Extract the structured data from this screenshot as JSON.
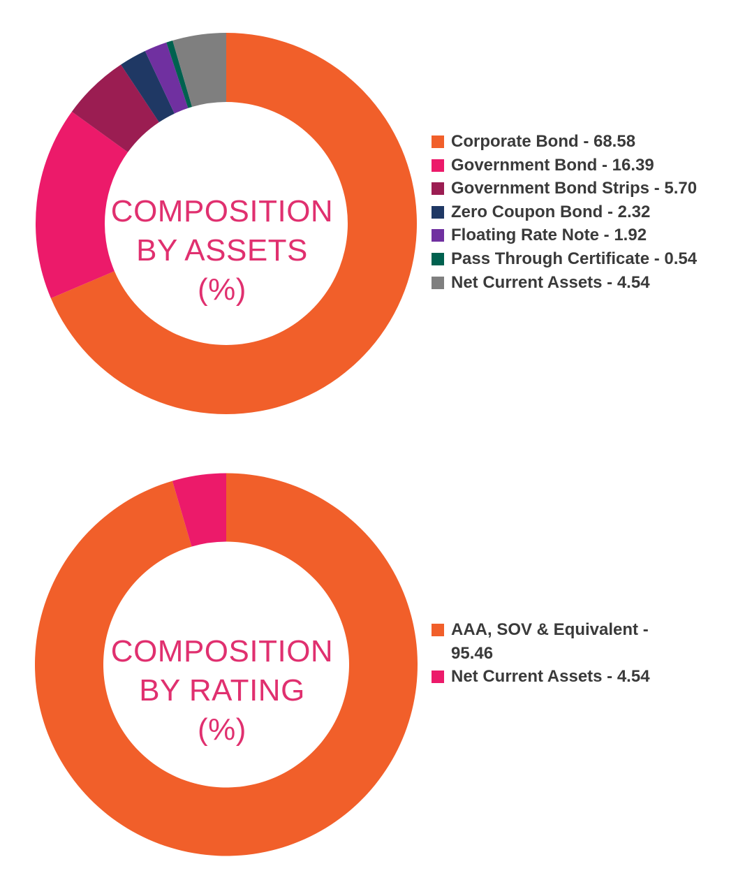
{
  "chart_data": [
    {
      "type": "pie",
      "variant": "donut",
      "center_title_lines": [
        "COMPOSITION",
        "BY ASSETS",
        "(%)"
      ],
      "series": [
        {
          "name": "Corporate Bond",
          "value": 68.58,
          "color": "#f15f2a",
          "legend_label": "Corporate Bond - 68.58"
        },
        {
          "name": "Government Bond",
          "value": 16.39,
          "color": "#ec1a6a",
          "legend_label": "Government Bond - 16.39"
        },
        {
          "name": "Government Bond Strips",
          "value": 5.7,
          "color": "#9b1d52",
          "legend_label": "Government Bond Strips - 5.70"
        },
        {
          "name": "Zero Coupon Bond",
          "value": 2.32,
          "color": "#1f3864",
          "legend_label": "Zero Coupon Bond - 2.32"
        },
        {
          "name": "Floating Rate Note",
          "value": 1.92,
          "color": "#7030a0",
          "legend_label": "Floating Rate Note - 1.92"
        },
        {
          "name": "Pass Through Certificate",
          "value": 0.54,
          "color": "#00614f",
          "legend_label": "Pass Through Certificate - 0.54"
        },
        {
          "name": "Net Current Assets",
          "value": 4.54,
          "color": "#7f7f7f",
          "legend_label": "Net Current Assets - 4.54"
        }
      ],
      "legend_position": "right",
      "start": "top",
      "direction": "clockwise"
    },
    {
      "type": "pie",
      "variant": "donut",
      "center_title_lines": [
        "COMPOSITION",
        "BY RATING",
        "(%)"
      ],
      "series": [
        {
          "name": "AAA, SOV & Equivalent",
          "value": 95.46,
          "color": "#f15f2a",
          "legend_label": "AAA, SOV & Equivalent - 95.46"
        },
        {
          "name": "Net Current Assets",
          "value": 4.54,
          "color": "#ec1a6a",
          "legend_label": "Net Current Assets - 4.54"
        }
      ],
      "legend_position": "right",
      "start": "top",
      "direction": "clockwise"
    }
  ]
}
